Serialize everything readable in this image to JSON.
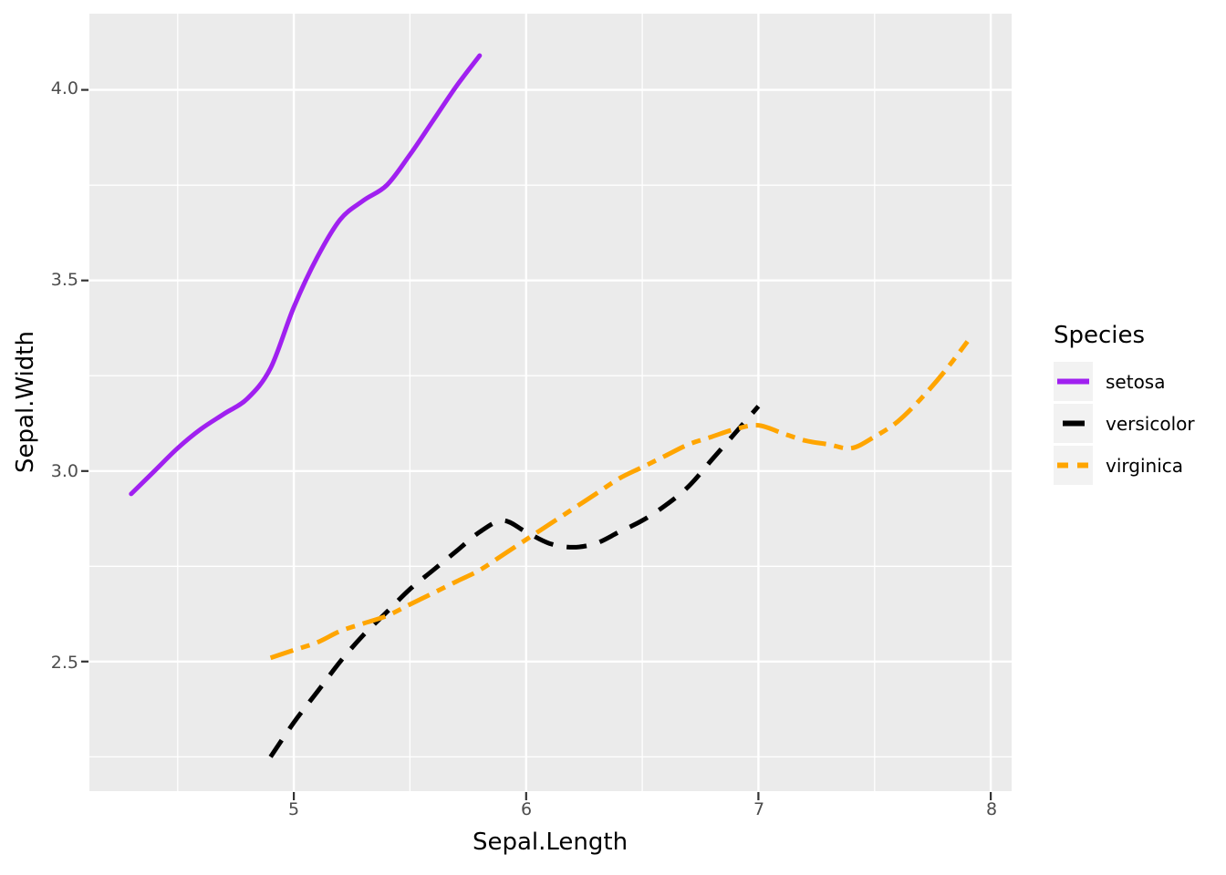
{
  "figure": {
    "background": "#FFFFFF",
    "panel_background": "#EBEBEB",
    "grid_color": "#FFFFFF",
    "tick_mark_color": "#333333",
    "tick_label_color": "#4D4D4D",
    "title_color": "#000000",
    "legend_key_background": "#F2F2F2"
  },
  "legend": {
    "title": "Species"
  },
  "chart_data": {
    "type": "line",
    "subtype": "loess-smooth",
    "title": "",
    "xlabel": "Sepal.Length",
    "ylabel": "Sepal.Width",
    "x_range": [
      4.12,
      8.09
    ],
    "y_range": [
      2.16,
      4.2
    ],
    "x_major_ticks": [
      5,
      6,
      7,
      8
    ],
    "x_tick_labels": [
      "5",
      "6",
      "7",
      "8"
    ],
    "x_minor_ticks": [
      4.5,
      5.5,
      6.5,
      7.5
    ],
    "y_major_ticks": [
      2.5,
      3.0,
      3.5,
      4.0
    ],
    "y_tick_labels": [
      "2.5",
      "3.0",
      "3.5",
      "4.0"
    ],
    "y_minor_ticks": [
      2.25,
      2.75,
      3.25,
      3.75
    ],
    "grid": true,
    "legend_position": "right",
    "legend_title": "Species",
    "series": [
      {
        "name": "setosa",
        "color": "#A020F0",
        "linetype": "solid",
        "dash": "",
        "x": [
          4.3,
          4.4,
          4.5,
          4.6,
          4.7,
          4.8,
          4.9,
          5.0,
          5.1,
          5.2,
          5.3,
          5.4,
          5.5,
          5.6,
          5.7,
          5.8
        ],
        "y": [
          2.94,
          3.0,
          3.06,
          3.11,
          3.15,
          3.19,
          3.27,
          3.43,
          3.56,
          3.66,
          3.71,
          3.75,
          3.83,
          3.92,
          4.01,
          4.09
        ]
      },
      {
        "name": "versicolor",
        "color": "#000000",
        "linetype": "dashed",
        "dash": "22 15",
        "x": [
          4.9,
          5.0,
          5.1,
          5.2,
          5.3,
          5.4,
          5.5,
          5.6,
          5.7,
          5.8,
          5.9,
          6.0,
          6.1,
          6.2,
          6.3,
          6.4,
          6.5,
          6.6,
          6.7,
          6.8,
          6.9,
          7.0
        ],
        "y": [
          2.25,
          2.34,
          2.42,
          2.5,
          2.57,
          2.63,
          2.69,
          2.74,
          2.79,
          2.84,
          2.87,
          2.84,
          2.81,
          2.8,
          2.81,
          2.84,
          2.87,
          2.91,
          2.96,
          3.03,
          3.1,
          3.17
        ]
      },
      {
        "name": "virginica",
        "color": "#FFA500",
        "linetype": "twodash",
        "dash": "26 9 10 9",
        "x": [
          4.9,
          5.0,
          5.1,
          5.2,
          5.3,
          5.4,
          5.5,
          5.6,
          5.7,
          5.8,
          5.9,
          6.0,
          6.1,
          6.2,
          6.3,
          6.4,
          6.5,
          6.6,
          6.7,
          6.8,
          6.9,
          7.0,
          7.1,
          7.2,
          7.3,
          7.4,
          7.5,
          7.6,
          7.7,
          7.8,
          7.9
        ],
        "y": [
          2.51,
          2.53,
          2.55,
          2.58,
          2.6,
          2.62,
          2.65,
          2.68,
          2.71,
          2.74,
          2.78,
          2.82,
          2.86,
          2.9,
          2.94,
          2.98,
          3.01,
          3.04,
          3.07,
          3.09,
          3.11,
          3.12,
          3.1,
          3.08,
          3.07,
          3.06,
          3.09,
          3.13,
          3.19,
          3.26,
          3.34
        ]
      }
    ]
  }
}
